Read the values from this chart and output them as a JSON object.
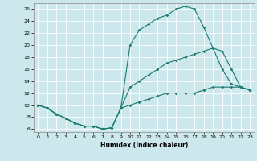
{
  "xlabel": "Humidex (Indice chaleur)",
  "bg_color": "#cce8ec",
  "grid_color": "#ffffff",
  "line_color": "#1a7a6e",
  "xlim": [
    -0.5,
    23.5
  ],
  "ylim": [
    5.5,
    27
  ],
  "yticks": [
    6,
    8,
    10,
    12,
    14,
    16,
    18,
    20,
    22,
    24,
    26
  ],
  "xticks": [
    0,
    1,
    2,
    3,
    4,
    5,
    6,
    7,
    8,
    9,
    10,
    11,
    12,
    13,
    14,
    15,
    16,
    17,
    18,
    19,
    20,
    21,
    22,
    23
  ],
  "curve_top_x": [
    0,
    1,
    2,
    3,
    4,
    5,
    6,
    7,
    8,
    9,
    10,
    11,
    12,
    13,
    14,
    15,
    16,
    17,
    18,
    19,
    20,
    21,
    22,
    23
  ],
  "curve_top_y": [
    10,
    9.5,
    8.5,
    7.8,
    7,
    6.5,
    6.5,
    6,
    6.2,
    9.5,
    20,
    22.5,
    23.5,
    24.5,
    25,
    26,
    26.5,
    26,
    23,
    19.5,
    16,
    13.5,
    13,
    12.5
  ],
  "curve_mid_x": [
    0,
    1,
    2,
    3,
    4,
    5,
    6,
    7,
    8,
    9,
    10,
    11,
    12,
    13,
    14,
    15,
    16,
    17,
    18,
    19,
    20,
    21,
    22,
    23
  ],
  "curve_mid_y": [
    10,
    9.5,
    8.5,
    7.8,
    7,
    6.5,
    6.5,
    6,
    6.2,
    9.5,
    13,
    14,
    15,
    16,
    17,
    17.5,
    18,
    18.5,
    19,
    19.5,
    19,
    16,
    13,
    12.5
  ],
  "curve_bot_x": [
    0,
    1,
    2,
    3,
    4,
    5,
    6,
    7,
    8,
    9,
    10,
    11,
    12,
    13,
    14,
    15,
    16,
    17,
    18,
    19,
    20,
    21,
    22,
    23
  ],
  "curve_bot_y": [
    10,
    9.5,
    8.5,
    7.8,
    7,
    6.5,
    6.5,
    6,
    6.2,
    9.5,
    10,
    10.5,
    11,
    11.5,
    12,
    12,
    12,
    12,
    12.5,
    13,
    13,
    13,
    13,
    12.5
  ],
  "xlabel_fontsize": 5.5,
  "tick_fontsize": 4.5,
  "marker_size": 1.8,
  "line_width": 0.8
}
